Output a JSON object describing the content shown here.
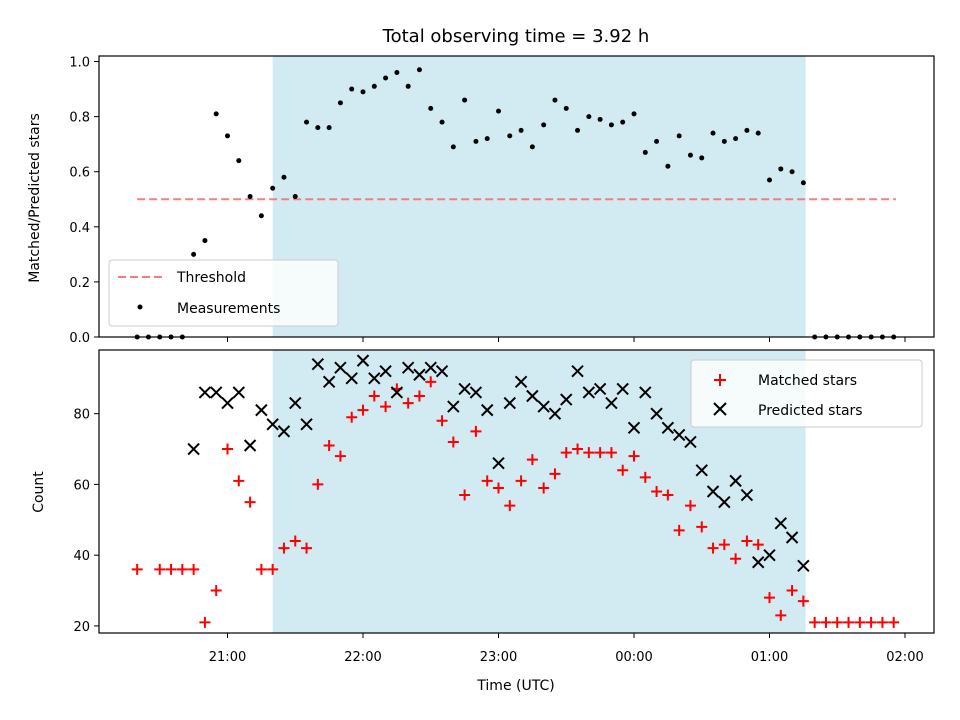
{
  "title": "Total observing time = 3.92 h",
  "chart_data": [
    {
      "type": "scatter",
      "panel": "top",
      "ylabel": "Matched/Predicted stars",
      "ylim": [
        0,
        1.02
      ],
      "yticks": [
        0.0,
        0.2,
        0.4,
        0.6,
        0.8,
        1.0
      ],
      "ytick_labels": [
        "0.0",
        "0.2",
        "0.4",
        "0.6",
        "0.8",
        "1.0"
      ],
      "legend_position": "lower-left",
      "shaded_interval": {
        "start": "21:20",
        "end": "01:16",
        "color": "#add8e6"
      },
      "threshold": {
        "name": "Threshold",
        "value": 0.5,
        "x_start": "20:20",
        "x_end": "01:56",
        "color": "#f08080",
        "style": "dashed"
      },
      "series": [
        {
          "name": "Measurements",
          "marker": "dot",
          "color": "#000000",
          "x": [
            "20:20",
            "20:25",
            "20:30",
            "20:35",
            "20:40",
            "20:45",
            "20:50",
            "20:55",
            "21:00",
            "21:05",
            "21:10",
            "21:15",
            "21:20",
            "21:25",
            "21:30",
            "21:35",
            "21:40",
            "21:45",
            "21:50",
            "21:55",
            "22:00",
            "22:05",
            "22:10",
            "22:15",
            "22:20",
            "22:25",
            "22:30",
            "22:35",
            "22:40",
            "22:45",
            "22:50",
            "22:55",
            "23:00",
            "23:05",
            "23:10",
            "23:15",
            "23:20",
            "23:25",
            "23:30",
            "23:35",
            "23:40",
            "23:45",
            "23:50",
            "23:55",
            "00:00",
            "00:05",
            "00:10",
            "00:15",
            "00:20",
            "00:25",
            "00:30",
            "00:35",
            "00:40",
            "00:45",
            "00:50",
            "00:55",
            "01:00",
            "01:05",
            "01:10",
            "01:15",
            "01:20",
            "01:25",
            "01:30",
            "01:35",
            "01:40",
            "01:45",
            "01:50",
            "01:55"
          ],
          "y": [
            0.0,
            0.0,
            0.0,
            0.0,
            0.0,
            0.3,
            0.35,
            0.81,
            0.73,
            0.64,
            0.51,
            0.44,
            0.54,
            0.58,
            0.51,
            0.78,
            0.76,
            0.76,
            0.85,
            0.9,
            0.89,
            0.91,
            0.94,
            0.96,
            0.91,
            0.97,
            0.83,
            0.78,
            0.69,
            0.86,
            0.71,
            0.72,
            0.82,
            0.73,
            0.75,
            0.69,
            0.77,
            0.86,
            0.83,
            0.75,
            0.8,
            0.79,
            0.77,
            0.78,
            0.81,
            0.67,
            0.71,
            0.62,
            0.73,
            0.66,
            0.65,
            0.74,
            0.71,
            0.72,
            0.75,
            0.74,
            0.57,
            0.61,
            0.6,
            0.56,
            0.0,
            0.0,
            0.0,
            0.0,
            0.0,
            0.0,
            0.0,
            0.0
          ]
        }
      ]
    },
    {
      "type": "scatter",
      "panel": "bottom",
      "xlabel": "Time (UTC)",
      "ylabel": "Count",
      "ylim": [
        18,
        98
      ],
      "yticks": [
        20,
        40,
        60,
        80
      ],
      "ytick_labels": [
        "20",
        "40",
        "60",
        "80"
      ],
      "xticks": [
        "21:00",
        "22:00",
        "23:00",
        "00:00",
        "01:00",
        "02:00"
      ],
      "legend_position": "upper-right",
      "shaded_interval": {
        "start": "21:20",
        "end": "01:16",
        "color": "#add8e6"
      },
      "series": [
        {
          "name": "Matched stars",
          "marker": "plus",
          "color": "#ff0000",
          "x": [
            "20:20",
            "20:30",
            "20:35",
            "20:40",
            "20:45",
            "20:50",
            "20:55",
            "21:00",
            "21:05",
            "21:10",
            "21:15",
            "21:20",
            "21:25",
            "21:30",
            "21:35",
            "21:40",
            "21:45",
            "21:50",
            "21:55",
            "22:00",
            "22:05",
            "22:10",
            "22:15",
            "22:20",
            "22:25",
            "22:30",
            "22:35",
            "22:40",
            "22:45",
            "22:50",
            "22:55",
            "23:00",
            "23:05",
            "23:10",
            "23:15",
            "23:20",
            "23:25",
            "23:30",
            "23:35",
            "23:40",
            "23:45",
            "23:50",
            "23:55",
            "00:00",
            "00:05",
            "00:10",
            "00:15",
            "00:20",
            "00:25",
            "00:30",
            "00:35",
            "00:40",
            "00:45",
            "00:50",
            "00:55",
            "01:00",
            "01:05",
            "01:10",
            "01:15",
            "01:20",
            "01:25",
            "01:30",
            "01:35",
            "01:40",
            "01:45",
            "01:50",
            "01:55"
          ],
          "y": [
            36,
            36,
            36,
            36,
            36,
            21,
            30,
            70,
            61,
            55,
            36,
            36,
            42,
            44,
            42,
            60,
            71,
            68,
            79,
            81,
            85,
            82,
            87,
            83,
            85,
            89,
            78,
            72,
            57,
            75,
            61,
            59,
            54,
            61,
            67,
            59,
            63,
            69,
            70,
            69,
            69,
            69,
            64,
            68,
            62,
            58,
            57,
            47,
            54,
            48,
            42,
            43,
            39,
            44,
            43,
            28,
            23,
            30,
            27,
            21,
            21,
            21,
            21,
            21,
            21,
            21,
            21
          ]
        },
        {
          "name": "Predicted stars",
          "marker": "x",
          "color": "#000000",
          "x": [
            "20:45",
            "20:50",
            "20:55",
            "21:00",
            "21:05",
            "21:10",
            "21:15",
            "21:20",
            "21:25",
            "21:30",
            "21:35",
            "21:40",
            "21:45",
            "21:50",
            "21:55",
            "22:00",
            "22:05",
            "22:10",
            "22:15",
            "22:20",
            "22:25",
            "22:30",
            "22:35",
            "22:40",
            "22:45",
            "22:50",
            "22:55",
            "23:00",
            "23:05",
            "23:10",
            "23:15",
            "23:20",
            "23:25",
            "23:30",
            "23:35",
            "23:40",
            "23:45",
            "23:50",
            "23:55",
            "00:00",
            "00:05",
            "00:10",
            "00:15",
            "00:20",
            "00:25",
            "00:30",
            "00:35",
            "00:40",
            "00:45",
            "00:50",
            "00:55",
            "01:00",
            "01:05",
            "01:10",
            "01:15"
          ],
          "y": [
            70,
            86,
            86,
            83,
            86,
            71,
            81,
            77,
            75,
            83,
            77,
            94,
            89,
            93,
            90,
            95,
            90,
            92,
            86,
            93,
            91,
            93,
            92,
            82,
            87,
            86,
            81,
            66,
            83,
            89,
            85,
            82,
            80,
            84,
            92,
            86,
            87,
            83,
            87,
            76,
            86,
            80,
            76,
            74,
            72,
            64,
            58,
            55,
            61,
            57,
            38,
            40,
            49,
            45,
            37
          ]
        }
      ]
    }
  ]
}
